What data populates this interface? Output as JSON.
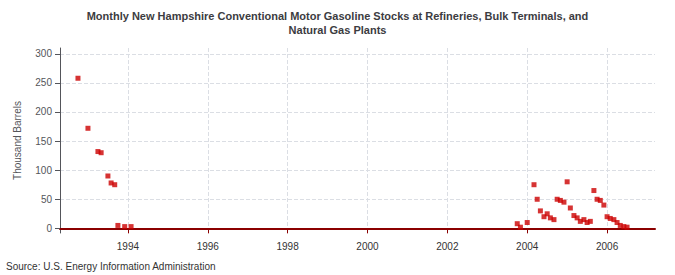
{
  "chart_data": {
    "type": "scatter",
    "title": "Monthly New Hampshire Conventional Motor Gasoline Stocks at Refineries, Bulk Terminals, and\nNatural Gas Plants",
    "ylabel": "Thousand Barrels",
    "annotations": [
      "Source: U.S. Energy Information Administration"
    ],
    "x": [
      1992.75,
      1993.0,
      1993.25,
      1993.33,
      1993.5,
      1993.58,
      1993.67,
      1993.75,
      1993.92,
      1994.08,
      2003.75,
      2003.83,
      2004.0,
      2004.17,
      2004.25,
      2004.33,
      2004.42,
      2004.5,
      2004.58,
      2004.67,
      2004.75,
      2004.83,
      2004.92,
      2005.0,
      2005.08,
      2005.17,
      2005.25,
      2005.33,
      2005.42,
      2005.5,
      2005.58,
      2005.67,
      2005.75,
      2005.83,
      2005.92,
      2006.0,
      2006.08,
      2006.17,
      2006.25,
      2006.33,
      2006.42,
      2006.5
    ],
    "values": [
      258,
      172,
      132,
      130,
      90,
      78,
      75,
      5,
      3,
      3,
      8,
      2,
      10,
      75,
      50,
      30,
      20,
      25,
      18,
      15,
      50,
      48,
      45,
      80,
      35,
      22,
      18,
      12,
      15,
      10,
      12,
      65,
      50,
      48,
      40,
      20,
      17,
      15,
      10,
      5,
      3,
      2
    ],
    "color": "#cc0000",
    "marker": "square",
    "xlim": [
      1992.3,
      2007.2
    ],
    "ylim": [
      -8,
      310
    ],
    "xticks": [
      1994,
      1996,
      1998,
      2000,
      2002,
      2004,
      2006
    ],
    "yticks": [
      0,
      50,
      100,
      150,
      200,
      250,
      300
    ],
    "grid": true
  }
}
